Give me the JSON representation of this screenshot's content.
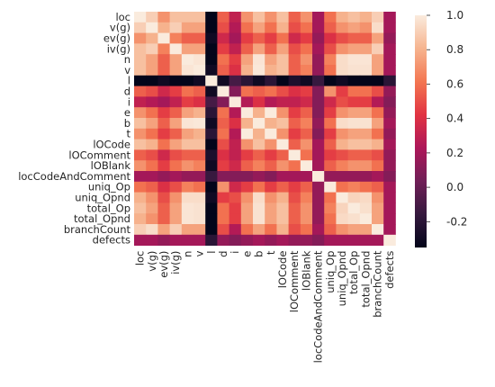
{
  "chart_data": {
    "type": "heatmap",
    "title": "",
    "xlabel": "",
    "ylabel": "",
    "x_categories": [
      "loc",
      "v(g)",
      "ev(g)",
      "iv(g)",
      "n",
      "v",
      "l",
      "d",
      "i",
      "e",
      "b",
      "t",
      "lOCode",
      "lOComment",
      "lOBlank",
      "locCodeAndComment",
      "uniq_Op",
      "uniq_Opnd",
      "total_Op",
      "total_Opnd",
      "branchCount",
      "defects"
    ],
    "y_categories": [
      "loc",
      "v(g)",
      "ev(g)",
      "iv(g)",
      "n",
      "v",
      "l",
      "d",
      "i",
      "e",
      "b",
      "t",
      "lOCode",
      "lOComment",
      "lOBlank",
      "locCodeAndComment",
      "uniq_Op",
      "uniq_Opnd",
      "total_Op",
      "total_Opnd",
      "branchCount",
      "defects"
    ],
    "values": [
      [
        1.0,
        0.9,
        0.7,
        0.85,
        0.85,
        0.85,
        -0.35,
        0.55,
        0.3,
        0.7,
        0.85,
        0.7,
        0.85,
        0.55,
        0.7,
        0.2,
        0.6,
        0.8,
        0.85,
        0.8,
        0.9,
        0.2
      ],
      [
        0.9,
        1.0,
        0.8,
        0.9,
        0.75,
        0.75,
        -0.35,
        0.5,
        0.25,
        0.6,
        0.75,
        0.6,
        0.8,
        0.5,
        0.6,
        0.2,
        0.55,
        0.7,
        0.75,
        0.7,
        0.95,
        0.2
      ],
      [
        0.7,
        0.8,
        1.0,
        0.65,
        0.55,
        0.55,
        -0.3,
        0.35,
        0.2,
        0.45,
        0.55,
        0.45,
        0.6,
        0.35,
        0.45,
        0.15,
        0.4,
        0.5,
        0.55,
        0.55,
        0.75,
        0.15
      ],
      [
        0.85,
        0.9,
        0.65,
        1.0,
        0.75,
        0.75,
        -0.35,
        0.45,
        0.3,
        0.55,
        0.75,
        0.55,
        0.75,
        0.5,
        0.6,
        0.2,
        0.5,
        0.7,
        0.75,
        0.75,
        0.9,
        0.2
      ],
      [
        0.85,
        0.75,
        0.55,
        0.75,
        1.0,
        0.98,
        -0.35,
        0.6,
        0.45,
        0.75,
        0.98,
        0.75,
        0.85,
        0.55,
        0.7,
        0.15,
        0.65,
        0.95,
        0.98,
        0.98,
        0.75,
        0.2
      ],
      [
        0.85,
        0.75,
        0.55,
        0.75,
        0.98,
        1.0,
        -0.3,
        0.55,
        0.4,
        0.8,
        0.99,
        0.8,
        0.85,
        0.55,
        0.65,
        0.15,
        0.6,
        0.95,
        0.97,
        0.97,
        0.75,
        0.2
      ],
      [
        -0.35,
        -0.35,
        -0.3,
        -0.35,
        -0.35,
        -0.3,
        1.0,
        -0.3,
        -0.1,
        -0.2,
        -0.3,
        -0.2,
        -0.35,
        -0.25,
        -0.3,
        -0.15,
        -0.4,
        -0.3,
        -0.35,
        -0.35,
        -0.35,
        -0.2
      ],
      [
        0.55,
        0.5,
        0.35,
        0.45,
        0.6,
        0.55,
        -0.3,
        1.0,
        0.1,
        0.6,
        0.55,
        0.6,
        0.5,
        0.4,
        0.45,
        0.1,
        0.7,
        0.45,
        0.6,
        0.6,
        0.5,
        0.15
      ],
      [
        0.3,
        0.25,
        0.2,
        0.3,
        0.45,
        0.4,
        -0.1,
        0.1,
        1.0,
        0.25,
        0.4,
        0.25,
        0.3,
        0.3,
        0.35,
        0.1,
        0.35,
        0.5,
        0.45,
        0.45,
        0.25,
        0.1
      ],
      [
        0.7,
        0.6,
        0.45,
        0.55,
        0.75,
        0.8,
        -0.2,
        0.6,
        0.25,
        1.0,
        0.8,
        1.0,
        0.7,
        0.45,
        0.55,
        0.1,
        0.45,
        0.7,
        0.75,
        0.75,
        0.6,
        0.15
      ],
      [
        0.85,
        0.75,
        0.55,
        0.75,
        0.98,
        0.99,
        -0.3,
        0.55,
        0.4,
        0.8,
        1.0,
        0.8,
        0.85,
        0.55,
        0.65,
        0.15,
        0.6,
        0.95,
        0.97,
        0.97,
        0.75,
        0.2
      ],
      [
        0.7,
        0.6,
        0.45,
        0.55,
        0.75,
        0.8,
        -0.2,
        0.6,
        0.25,
        1.0,
        0.8,
        1.0,
        0.7,
        0.45,
        0.55,
        0.1,
        0.45,
        0.7,
        0.75,
        0.75,
        0.6,
        0.15
      ],
      [
        0.85,
        0.8,
        0.6,
        0.75,
        0.85,
        0.85,
        -0.35,
        0.5,
        0.3,
        0.7,
        0.85,
        0.7,
        1.0,
        0.55,
        0.7,
        0.2,
        0.55,
        0.8,
        0.85,
        0.85,
        0.8,
        0.2
      ],
      [
        0.55,
        0.5,
        0.35,
        0.5,
        0.55,
        0.55,
        -0.25,
        0.4,
        0.3,
        0.45,
        0.55,
        0.45,
        0.55,
        1.0,
        0.6,
        0.2,
        0.45,
        0.5,
        0.55,
        0.55,
        0.5,
        0.15
      ],
      [
        0.7,
        0.6,
        0.45,
        0.6,
        0.7,
        0.65,
        -0.3,
        0.45,
        0.35,
        0.55,
        0.65,
        0.55,
        0.7,
        0.6,
        1.0,
        0.2,
        0.55,
        0.65,
        0.7,
        0.7,
        0.6,
        0.15
      ],
      [
        0.2,
        0.2,
        0.15,
        0.2,
        0.15,
        0.15,
        -0.15,
        0.1,
        0.1,
        0.1,
        0.15,
        0.1,
        0.2,
        0.2,
        0.2,
        1.0,
        0.15,
        0.15,
        0.15,
        0.15,
        0.2,
        0.1
      ],
      [
        0.6,
        0.55,
        0.4,
        0.5,
        0.65,
        0.6,
        -0.4,
        0.7,
        0.35,
        0.45,
        0.6,
        0.45,
        0.55,
        0.45,
        0.55,
        0.15,
        1.0,
        0.6,
        0.65,
        0.6,
        0.55,
        0.2
      ],
      [
        0.8,
        0.7,
        0.5,
        0.7,
        0.95,
        0.95,
        -0.3,
        0.45,
        0.5,
        0.7,
        0.95,
        0.7,
        0.8,
        0.5,
        0.65,
        0.15,
        0.6,
        1.0,
        0.92,
        0.94,
        0.7,
        0.2
      ],
      [
        0.85,
        0.75,
        0.55,
        0.75,
        0.98,
        0.97,
        -0.35,
        0.6,
        0.45,
        0.75,
        0.97,
        0.75,
        0.85,
        0.55,
        0.7,
        0.15,
        0.65,
        0.92,
        1.0,
        0.96,
        0.75,
        0.2
      ],
      [
        0.8,
        0.7,
        0.55,
        0.75,
        0.98,
        0.97,
        -0.35,
        0.6,
        0.45,
        0.75,
        0.97,
        0.75,
        0.85,
        0.55,
        0.7,
        0.15,
        0.6,
        0.94,
        0.96,
        1.0,
        0.75,
        0.2
      ],
      [
        0.9,
        0.95,
        0.75,
        0.9,
        0.75,
        0.75,
        -0.35,
        0.5,
        0.25,
        0.6,
        0.75,
        0.6,
        0.8,
        0.5,
        0.6,
        0.2,
        0.55,
        0.7,
        0.75,
        0.75,
        1.0,
        0.2
      ],
      [
        0.2,
        0.2,
        0.15,
        0.2,
        0.2,
        0.2,
        -0.2,
        0.15,
        0.1,
        0.15,
        0.2,
        0.15,
        0.2,
        0.15,
        0.15,
        0.1,
        0.2,
        0.2,
        0.2,
        0.2,
        0.2,
        1.0
      ]
    ],
    "colorbar": {
      "min": -0.35,
      "max": 1.0,
      "ticks": [
        1.0,
        0.8,
        0.6,
        0.4,
        0.2,
        0.0,
        -0.2
      ],
      "tick_labels": [
        "1.0",
        "0.8",
        "0.6",
        "0.4",
        "0.2",
        "0.0",
        "-0.2"
      ],
      "colormap": "rocket",
      "color_stops": [
        "#03051a",
        "#35193e",
        "#701f57",
        "#ad1759",
        "#e13342",
        "#f37651",
        "#f6b48f",
        "#faebdd"
      ]
    },
    "grid": false,
    "legend": "none"
  }
}
